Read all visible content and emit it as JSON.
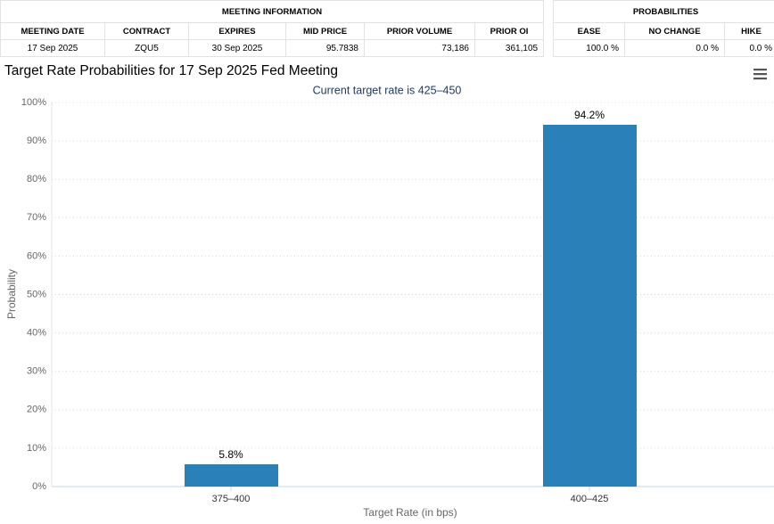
{
  "meeting_info": {
    "title": "MEETING INFORMATION",
    "headers": [
      "MEETING DATE",
      "CONTRACT",
      "EXPIRES",
      "MID PRICE",
      "PRIOR VOLUME",
      "PRIOR OI"
    ],
    "rows": [
      [
        "17 Sep 2025",
        "ZQU5",
        "30 Sep 2025",
        "95.7838",
        "73,186",
        "361,105"
      ]
    ]
  },
  "probabilities": {
    "title": "PROBABILITIES",
    "headers": [
      "EASE",
      "NO CHANGE",
      "HIKE"
    ],
    "rows": [
      [
        "100.0 %",
        "0.0 %",
        "0.0 %"
      ]
    ]
  },
  "chart_data": {
    "type": "bar",
    "title": "Target Rate Probabilities for 17 Sep 2025 Fed Meeting",
    "subtitle": "Current target rate is 425–450",
    "x_label": "Target Rate (in bps)",
    "y_label": "Probability",
    "categories": [
      "375–400",
      "400–425"
    ],
    "values": [
      5.8,
      94.2
    ],
    "value_labels": [
      "5.8%",
      "94.2%"
    ],
    "color": "#2a80b9",
    "ylim": [
      0,
      100
    ],
    "yticks": [
      {
        "value": 0,
        "label": "0%"
      },
      {
        "value": 10,
        "label": "10%"
      },
      {
        "value": 20,
        "label": "20%"
      },
      {
        "value": 30,
        "label": "30%"
      },
      {
        "value": 40,
        "label": "40%"
      },
      {
        "value": 50,
        "label": "50%"
      },
      {
        "value": 60,
        "label": "60%"
      },
      {
        "value": 70,
        "label": "70%"
      },
      {
        "value": 80,
        "label": "80%"
      },
      {
        "value": 90,
        "label": "90%"
      },
      {
        "value": 100,
        "label": "100%"
      }
    ],
    "grid": true
  }
}
